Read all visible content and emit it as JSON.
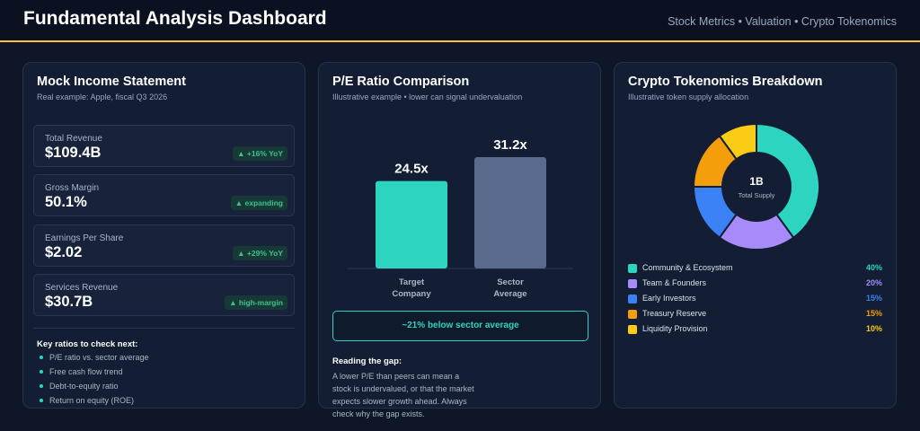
{
  "header": {
    "title": "Fundamental Analysis Dashboard",
    "subtitle": "Stock Metrics • Valuation • Crypto Tokenomics"
  },
  "income": {
    "title": "Mock Income Statement",
    "subtitle": "Real example: Apple, fiscal Q3 2026",
    "metrics": [
      {
        "label": "Total Revenue",
        "value": "$109.4B",
        "badge": "▲ +16% YoY"
      },
      {
        "label": "Gross Margin",
        "value": "50.1%",
        "badge": "▲ expanding"
      },
      {
        "label": "Earnings Per Share",
        "value": "$2.02",
        "badge": "▲ +29% YoY"
      },
      {
        "label": "Services Revenue",
        "value": "$30.7B",
        "badge": "▲ high-margin"
      }
    ],
    "ratios_title": "Key ratios to check next:",
    "ratios": [
      "P/E ratio vs. sector average",
      "Free cash flow trend",
      "Debt-to-equity ratio",
      "Return on equity (ROE)"
    ]
  },
  "pe": {
    "title": "P/E Ratio Comparison",
    "subtitle": "Illustrative example • lower can signal undervaluation",
    "callout": "~21% below sector average",
    "gap_title": "Reading the gap:",
    "gap_text": "A lower P/E than peers can mean a stock is undervalued, or that the market expects slower growth ahead. Always check why the gap exists."
  },
  "tokenomics": {
    "title": "Crypto Tokenomics Breakdown",
    "subtitle": "Illustrative token supply allocation",
    "center_value": "1B",
    "center_label": "Total Supply"
  },
  "chart_data": [
    {
      "type": "bar",
      "categories": [
        "Target Company",
        "Sector Average"
      ],
      "category_lines": [
        [
          "Target",
          "Company"
        ],
        [
          "Sector",
          "Average"
        ]
      ],
      "values": [
        24.5,
        31.2
      ],
      "value_labels": [
        "24.5x",
        "31.2x"
      ],
      "ylim": [
        0,
        31.2
      ],
      "colors": [
        "#2dd4bf",
        "#5a6a8c"
      ],
      "grid": false
    },
    {
      "type": "pie",
      "donut": true,
      "categories": [
        "Community & Ecosystem",
        "Team & Founders",
        "Early Investors",
        "Treasury Reserve",
        "Liquidity Provision"
      ],
      "values": [
        40,
        20,
        15,
        15,
        10
      ],
      "labels": [
        "40%",
        "20%",
        "15%",
        "15%",
        "10%"
      ],
      "colors": [
        "#2dd4bf",
        "#a78bfa",
        "#3b82f6",
        "#f59e0b",
        "#facc15"
      ],
      "legend": "bottom"
    }
  ]
}
